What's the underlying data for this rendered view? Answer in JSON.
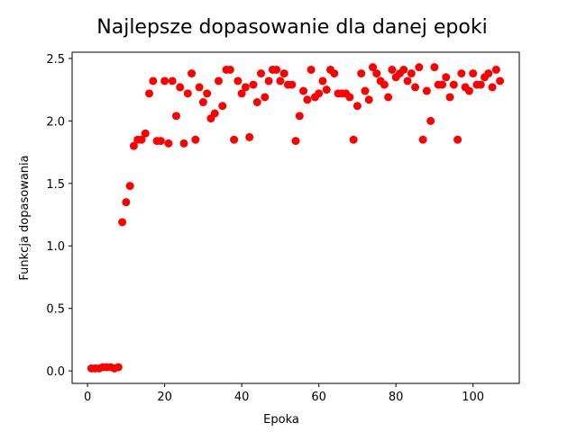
{
  "chart_data": {
    "type": "scatter",
    "title": "Najlepsze dopasowanie dla danej epoki",
    "xlabel": "Epoka",
    "ylabel": "Funkcja dopasowania",
    "xlim": [
      -4,
      112
    ],
    "ylim": [
      -0.1,
      2.55
    ],
    "xticks": [
      0,
      20,
      40,
      60,
      80,
      100
    ],
    "yticks": [
      0.0,
      0.5,
      1.0,
      1.5,
      2.0,
      2.5
    ],
    "ytick_labels": [
      "0.0",
      "0.5",
      "1.0",
      "1.5",
      "2.0",
      "2.5"
    ],
    "grid": false,
    "marker_color": "#ff0000",
    "x": [
      1,
      2,
      3,
      4,
      5,
      6,
      7,
      8,
      9,
      10,
      11,
      12,
      13,
      14,
      15,
      16,
      17,
      18,
      19,
      20,
      21,
      22,
      23,
      24,
      25,
      26,
      27,
      28,
      29,
      30,
      31,
      32,
      33,
      34,
      35,
      36,
      37,
      38,
      39,
      40,
      41,
      42,
      43,
      44,
      45,
      46,
      47,
      48,
      49,
      50,
      51,
      52,
      53,
      54,
      55,
      56,
      57,
      58,
      59,
      60,
      61,
      62,
      63,
      64,
      65,
      66,
      67,
      68,
      69,
      70,
      71,
      72,
      73,
      74,
      75,
      76,
      77,
      78,
      79,
      80,
      81,
      82,
      83,
      84,
      85,
      86,
      87,
      88,
      89,
      90,
      91,
      92,
      93,
      94,
      95,
      96,
      97,
      98,
      99,
      100,
      101,
      102,
      103,
      104,
      105,
      106,
      107
    ],
    "y": [
      0.02,
      0.02,
      0.02,
      0.03,
      0.03,
      0.03,
      0.02,
      0.03,
      1.19,
      1.35,
      1.48,
      1.8,
      1.85,
      1.85,
      1.9,
      2.22,
      2.32,
      1.84,
      1.84,
      2.32,
      1.82,
      2.32,
      2.04,
      2.27,
      1.82,
      2.22,
      2.38,
      1.85,
      2.27,
      2.15,
      2.22,
      2.02,
      2.06,
      2.32,
      2.12,
      2.41,
      2.41,
      1.85,
      2.32,
      2.22,
      2.27,
      1.87,
      2.29,
      2.15,
      2.38,
      2.19,
      2.32,
      2.41,
      2.41,
      2.32,
      2.38,
      2.29,
      2.29,
      1.84,
      2.04,
      2.24,
      2.17,
      2.41,
      2.19,
      2.22,
      2.32,
      2.25,
      2.41,
      2.38,
      2.22,
      2.22,
      2.22,
      2.19,
      1.85,
      2.12,
      2.38,
      2.24,
      2.17,
      2.43,
      2.38,
      2.32,
      2.29,
      2.19,
      2.41,
      2.35,
      2.38,
      2.41,
      2.32,
      2.38,
      2.27,
      2.43,
      1.85,
      2.24,
      2.0,
      2.43,
      2.29,
      2.29,
      2.35,
      2.19,
      2.29,
      1.85,
      2.38,
      2.27,
      2.24,
      2.38,
      2.29,
      2.29,
      2.35,
      2.38,
      2.27,
      2.41,
      2.32
    ]
  }
}
